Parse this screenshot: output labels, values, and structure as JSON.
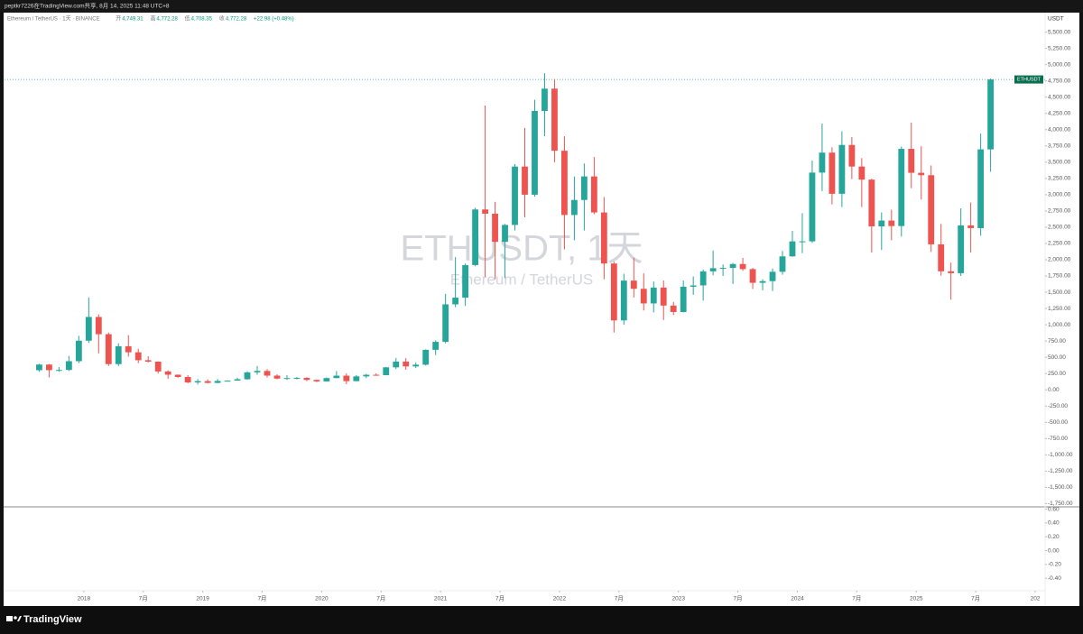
{
  "header": {
    "share_note": "peptkr7226在TradingView.com共享, 8月 14, 2025 11:48 UTC+8",
    "symbol": "Ethereum / TetherUS · 1天 · BINANCE",
    "ohlc": [
      {
        "key": "开",
        "value": "4,749.31"
      },
      {
        "key": "高",
        "value": "4,772.28"
      },
      {
        "key": "低",
        "value": "4,708.35"
      },
      {
        "key": "收",
        "value": "4,772.28"
      }
    ],
    "change": "+22.98 (+0.48%)",
    "watermark": "ETHUSDT, 1天",
    "watermark_sub": "Ethereum / TetherUS",
    "axis_unit": "USDT",
    "price_tag": "ETHUSDT"
  },
  "footer": {
    "brand": "TradingView"
  },
  "chart_data": [
    {
      "type": "candlestick",
      "grid": false,
      "up_color": "#26a69a",
      "down_color": "#ef5350",
      "x": [
        "2017-08",
        "2017-09",
        "2017-10",
        "2017-11",
        "2017-12",
        "2018-01",
        "2018-02",
        "2018-03",
        "2018-04",
        "2018-05",
        "2018-06",
        "2018-07",
        "2018-08",
        "2018-09",
        "2018-10",
        "2018-11",
        "2018-12",
        "2019-01",
        "2019-02",
        "2019-03",
        "2019-04",
        "2019-05",
        "2019-06",
        "2019-07",
        "2019-08",
        "2019-09",
        "2019-10",
        "2019-11",
        "2019-12",
        "2020-01",
        "2020-02",
        "2020-03",
        "2020-04",
        "2020-05",
        "2020-06",
        "2020-07",
        "2020-08",
        "2020-09",
        "2020-10",
        "2020-11",
        "2020-12",
        "2021-01",
        "2021-02",
        "2021-03",
        "2021-04",
        "2021-05",
        "2021-06",
        "2021-07",
        "2021-08",
        "2021-09",
        "2021-10",
        "2021-11",
        "2021-12",
        "2022-01",
        "2022-02",
        "2022-03",
        "2022-04",
        "2022-05",
        "2022-06",
        "2022-07",
        "2022-08",
        "2022-09",
        "2022-10",
        "2022-11",
        "2022-12",
        "2023-01",
        "2023-02",
        "2023-03",
        "2023-04",
        "2023-05",
        "2023-06",
        "2023-07",
        "2023-08",
        "2023-09",
        "2023-10",
        "2023-11",
        "2023-12",
        "2024-01",
        "2024-02",
        "2024-03",
        "2024-04",
        "2024-05",
        "2024-06",
        "2024-07",
        "2024-08",
        "2024-09",
        "2024-10",
        "2024-11",
        "2024-12",
        "2025-01",
        "2025-02",
        "2025-03",
        "2025-04",
        "2025-05",
        "2025-06",
        "2025-07",
        "2025-08"
      ],
      "open": [
        301,
        388,
        302,
        305,
        440,
        755,
        1120,
        855,
        395,
        670,
        577,
        455,
        433,
        282,
        232,
        197,
        113,
        133,
        106,
        136,
        141,
        162,
        268,
        290,
        218,
        172,
        180,
        183,
        152,
        129,
        180,
        217,
        133,
        206,
        231,
        225,
        345,
        434,
        359,
        386,
        615,
        737,
        1314,
        1417,
        1918,
        2773,
        2708,
        2275,
        2535,
        3433,
        3000,
        4288,
        4631,
        3676,
        2688,
        2919,
        3281,
        2727,
        1942,
        1067,
        1679,
        1553,
        1328,
        1572,
        1295,
        1196,
        1585,
        1605,
        1821,
        1870,
        1874,
        1934,
        1856,
        1645,
        1671,
        1815,
        2052,
        2282,
        2283,
        3340,
        3647,
        3014,
        3765,
        3433,
        3232,
        2513,
        2602,
        2518,
        3705,
        3337,
        3300,
        2237,
        1822,
        1793,
        2528,
        2486,
        3697
      ],
      "high": [
        400,
        395,
        350,
        520,
        830,
        1420,
        1160,
        880,
        715,
        840,
        630,
        515,
        435,
        300,
        235,
        225,
        165,
        160,
        165,
        145,
        185,
        285,
        365,
        319,
        240,
        225,
        198,
        195,
        155,
        190,
        288,
        253,
        227,
        245,
        254,
        350,
        490,
        488,
        420,
        622,
        760,
        1475,
        2040,
        1943,
        2800,
        4372,
        2890,
        2550,
        3470,
        4027,
        4460,
        4868,
        4778,
        3900,
        3280,
        3480,
        3580,
        2965,
        1970,
        1785,
        2030,
        1790,
        1665,
        1680,
        1352,
        1680,
        1743,
        1850,
        2142,
        1928,
        1950,
        2029,
        1875,
        1700,
        1865,
        2135,
        2445,
        2715,
        3523,
        4094,
        3730,
        3975,
        3887,
        3563,
        3245,
        2728,
        2770,
        3740,
        4108,
        3745,
        3450,
        2550,
        1955,
        2790,
        2880,
        3940,
        4788
      ],
      "low": [
        278,
        190,
        280,
        290,
        410,
        720,
        560,
        365,
        365,
        510,
        410,
        420,
        250,
        167,
        185,
        101,
        81,
        100,
        101,
        126,
        140,
        155,
        232,
        190,
        160,
        152,
        160,
        133,
        117,
        127,
        178,
        86,
        130,
        180,
        215,
        223,
        318,
        308,
        335,
        373,
        535,
        714,
        1270,
        1290,
        1900,
        1735,
        1700,
        1718,
        2450,
        2651,
        2970,
        3900,
        3500,
        2159,
        2300,
        2450,
        2700,
        1700,
        880,
        1000,
        1420,
        1220,
        1190,
        1073,
        1150,
        1190,
        1460,
        1370,
        1760,
        1750,
        1627,
        1830,
        1550,
        1530,
        1520,
        1770,
        2045,
        2100,
        2260,
        3055,
        2850,
        2810,
        3240,
        2810,
        2111,
        2150,
        2300,
        2357,
        3100,
        2925,
        2120,
        1755,
        1385,
        1750,
        2110,
        2370,
        3355
      ],
      "close": [
        388,
        302,
        305,
        440,
        755,
        1120,
        855,
        395,
        670,
        577,
        455,
        433,
        282,
        232,
        197,
        113,
        133,
        106,
        136,
        141,
        162,
        268,
        290,
        218,
        172,
        180,
        183,
        152,
        129,
        180,
        217,
        133,
        206,
        231,
        225,
        345,
        434,
        359,
        386,
        615,
        737,
        1314,
        1417,
        1918,
        2773,
        2708,
        2275,
        2535,
        3433,
        3000,
        4288,
        4631,
        3676,
        2688,
        2919,
        3281,
        2727,
        1942,
        1067,
        1679,
        1553,
        1328,
        1572,
        1295,
        1196,
        1585,
        1605,
        1821,
        1870,
        1874,
        1934,
        1856,
        1645,
        1671,
        1815,
        2052,
        2282,
        2283,
        3340,
        3647,
        3014,
        3765,
        3433,
        3232,
        2513,
        2602,
        2518,
        3705,
        3337,
        3300,
        2237,
        1822,
        1793,
        2528,
        2486,
        3697,
        4772.28
      ],
      "xlim": [
        "2017-05",
        "2026-02"
      ],
      "xticks": [
        {
          "value": "2018-01",
          "label": "2018"
        },
        {
          "value": "2018-07",
          "label": "7月"
        },
        {
          "value": "2019-01",
          "label": "2019"
        },
        {
          "value": "2019-07",
          "label": "7月"
        },
        {
          "value": "2020-01",
          "label": "2020"
        },
        {
          "value": "2020-07",
          "label": "7月"
        },
        {
          "value": "2021-01",
          "label": "2021"
        },
        {
          "value": "2021-07",
          "label": "7月"
        },
        {
          "value": "2022-01",
          "label": "2022"
        },
        {
          "value": "2022-07",
          "label": "7月"
        },
        {
          "value": "2023-01",
          "label": "2023"
        },
        {
          "value": "2023-07",
          "label": "7月"
        },
        {
          "value": "2024-01",
          "label": "2024"
        },
        {
          "value": "2024-07",
          "label": "7月"
        },
        {
          "value": "2025-01",
          "label": "2025"
        },
        {
          "value": "2025-07",
          "label": "7月"
        },
        {
          "value": "2026-01",
          "label": "202"
        }
      ],
      "ylim": [
        -1800,
        5800
      ],
      "yticks": [
        {
          "value": 5500,
          "label": "5,500.00"
        },
        {
          "value": 5250,
          "label": "5,250.00"
        },
        {
          "value": 5000,
          "label": "5,000.00"
        },
        {
          "value": 4750,
          "label": "4,750.00"
        },
        {
          "value": 4500,
          "label": "4,500.00"
        },
        {
          "value": 4250,
          "label": "4,250.00"
        },
        {
          "value": 4000,
          "label": "4,000.00"
        },
        {
          "value": 3750,
          "label": "3,750.00"
        },
        {
          "value": 3500,
          "label": "3,500.00"
        },
        {
          "value": 3250,
          "label": "3,250.00"
        },
        {
          "value": 3000,
          "label": "3,000.00"
        },
        {
          "value": 2750,
          "label": "2,750.00"
        },
        {
          "value": 2500,
          "label": "2,500.00"
        },
        {
          "value": 2250,
          "label": "2,250.00"
        },
        {
          "value": 2000,
          "label": "2,000.00"
        },
        {
          "value": 1750,
          "label": "1,750.00"
        },
        {
          "value": 1500,
          "label": "1,500.00"
        },
        {
          "value": 1250,
          "label": "1,250.00"
        },
        {
          "value": 1000,
          "label": "1,000.00"
        },
        {
          "value": 750,
          "label": "750.00"
        },
        {
          "value": 500,
          "label": "500.00"
        },
        {
          "value": 250,
          "label": "250.00"
        },
        {
          "value": 0,
          "label": "0.00"
        },
        {
          "value": -250,
          "label": "-250.00"
        },
        {
          "value": -500,
          "label": "-500.00"
        },
        {
          "value": -750,
          "label": "-750.00"
        },
        {
          "value": -1000,
          "label": "-1,000.00"
        },
        {
          "value": -1250,
          "label": "-1,250.00"
        },
        {
          "value": -1500,
          "label": "-1,500.00"
        },
        {
          "value": -1750,
          "label": "-1,750.00"
        }
      ]
    },
    {
      "type": "line",
      "series": [],
      "ylim": [
        -0.58,
        0.62
      ],
      "yticks": [
        {
          "value": 0.6,
          "label": "0.60"
        },
        {
          "value": 0.4,
          "label": "0.40"
        },
        {
          "value": 0.2,
          "label": "0.20"
        },
        {
          "value": 0,
          "label": "0.00"
        },
        {
          "value": -0.2,
          "label": "-0.20"
        },
        {
          "value": -0.4,
          "label": "-0.40"
        }
      ]
    }
  ]
}
